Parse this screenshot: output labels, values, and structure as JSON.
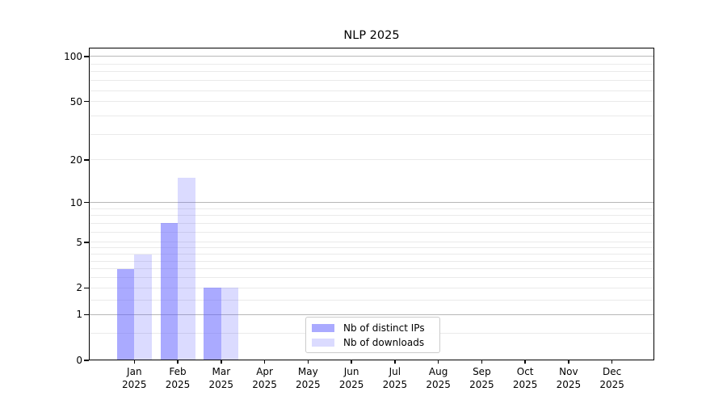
{
  "chart_data": {
    "type": "bar",
    "title": "NLP 2025",
    "categories": [
      {
        "month": "Jan",
        "year": "2025"
      },
      {
        "month": "Feb",
        "year": "2025"
      },
      {
        "month": "Mar",
        "year": "2025"
      },
      {
        "month": "Apr",
        "year": "2025"
      },
      {
        "month": "May",
        "year": "2025"
      },
      {
        "month": "Jun",
        "year": "2025"
      },
      {
        "month": "Jul",
        "year": "2025"
      },
      {
        "month": "Aug",
        "year": "2025"
      },
      {
        "month": "Sep",
        "year": "2025"
      },
      {
        "month": "Oct",
        "year": "2025"
      },
      {
        "month": "Nov",
        "year": "2025"
      },
      {
        "month": "Dec",
        "year": "2025"
      }
    ],
    "series": [
      {
        "name": "Nb of distinct IPs",
        "color": "rgba(85,85,255,0.5)",
        "values": [
          3,
          7,
          2,
          0,
          0,
          0,
          0,
          0,
          0,
          0,
          0,
          0
        ]
      },
      {
        "name": "Nb of downloads",
        "color": "rgba(85,85,255,0.21)",
        "values": [
          4,
          15,
          2,
          0,
          0,
          0,
          0,
          0,
          0,
          0,
          0,
          0
        ]
      }
    ],
    "y_axis": {
      "scale": "log10(value+1)",
      "ticks": [
        0,
        1,
        2,
        5,
        10,
        20,
        50,
        100
      ]
    },
    "gridlines": {
      "major": {
        "values": [
          1,
          10,
          100
        ],
        "color": "#b8b8b8"
      },
      "minor": {
        "values": [
          0.5,
          1.5,
          2,
          2.5,
          3,
          3.5,
          4,
          4.5,
          5,
          6,
          7,
          8,
          9,
          20,
          30,
          40,
          50,
          59,
          69,
          79,
          89
        ],
        "color": "#eaeaea"
      }
    },
    "legend": {
      "position": "lower center"
    }
  }
}
